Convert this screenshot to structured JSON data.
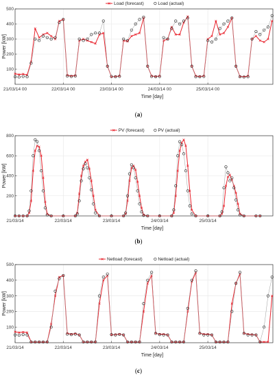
{
  "chart_data": [
    {
      "type": "line",
      "panel": "(a)",
      "caption_letter": "a",
      "ylabel": "Power [kW]",
      "xlabel": "Time [day]",
      "ylim": [
        0,
        500
      ],
      "yticks": [
        100,
        200,
        300,
        400,
        500
      ],
      "xlim": [
        0,
        5.35
      ],
      "xticks": [
        0,
        1,
        2,
        3,
        4
      ],
      "xticklabels": [
        "21/03/14 00",
        "22/03/14 00",
        "23/03/14 00",
        "24/03/14 00",
        "25/03/14 00"
      ],
      "grid": true,
      "legend": "top-center",
      "series": [
        {
          "name": "Load (forecast)",
          "color": "#e8202a",
          "marker": "x",
          "x": [
            0,
            0.083,
            0.167,
            0.25,
            0.333,
            0.417,
            0.5,
            0.583,
            0.667,
            0.75,
            0.833,
            0.917,
            1,
            1.083,
            1.167,
            1.25,
            1.333,
            1.417,
            1.5,
            1.583,
            1.667,
            1.75,
            1.833,
            1.917,
            2,
            2.083,
            2.167,
            2.25,
            2.333,
            2.417,
            2.5,
            2.583,
            2.667,
            2.75,
            2.833,
            2.917,
            3,
            3.083,
            3.167,
            3.25,
            3.333,
            3.417,
            3.5,
            3.583,
            3.667,
            3.75,
            3.833,
            3.917,
            4,
            4.083,
            4.167,
            4.25,
            4.333,
            4.417,
            4.5,
            4.583,
            4.667,
            4.75,
            4.833,
            4.917,
            5,
            5.083,
            5.167,
            5.25,
            5.333
          ],
          "y": [
            70,
            65,
            68,
            62,
            150,
            370,
            310,
            330,
            340,
            320,
            300,
            420,
            430,
            60,
            55,
            58,
            290,
            300,
            290,
            280,
            270,
            330,
            340,
            120,
            50,
            52,
            55,
            290,
            285,
            320,
            330,
            340,
            440,
            120,
            55,
            52,
            55,
            290,
            300,
            380,
            330,
            330,
            410,
            450,
            120,
            55,
            52,
            55,
            300,
            320,
            420,
            330,
            340,
            380,
            440,
            120,
            52,
            50,
            55,
            300,
            320,
            290,
            280,
            300,
            420
          ]
        },
        {
          "name": "Load (actual)",
          "color": "#222222",
          "marker": "o",
          "x": [
            0,
            0.083,
            0.167,
            0.25,
            0.333,
            0.417,
            0.5,
            0.583,
            0.667,
            0.75,
            0.833,
            0.917,
            1,
            1.083,
            1.167,
            1.25,
            1.333,
            1.417,
            1.5,
            1.583,
            1.667,
            1.75,
            1.833,
            1.917,
            2,
            2.083,
            2.167,
            2.25,
            2.333,
            2.417,
            2.5,
            2.583,
            2.667,
            2.75,
            2.833,
            2.917,
            3,
            3.083,
            3.167,
            3.25,
            3.333,
            3.417,
            3.5,
            3.583,
            3.667,
            3.75,
            3.833,
            3.917,
            4,
            4.083,
            4.167,
            4.25,
            4.333,
            4.417,
            4.5,
            4.583,
            4.667,
            4.75,
            4.833,
            4.917,
            5,
            5.083,
            5.167,
            5.25,
            5.333
          ],
          "y": [
            50,
            48,
            52,
            50,
            140,
            300,
            290,
            320,
            310,
            300,
            310,
            410,
            430,
            55,
            52,
            55,
            300,
            290,
            300,
            330,
            340,
            340,
            420,
            120,
            52,
            50,
            53,
            300,
            290,
            360,
            400,
            430,
            445,
            120,
            52,
            50,
            52,
            310,
            300,
            370,
            420,
            400,
            420,
            440,
            120,
            50,
            50,
            52,
            290,
            280,
            300,
            370,
            400,
            420,
            440,
            120,
            50,
            48,
            50,
            300,
            350,
            330,
            360,
            380,
            455
          ]
        }
      ]
    },
    {
      "type": "line",
      "panel": "(b)",
      "caption_letter": "b",
      "ylabel": "Power [kW]",
      "xlabel": "Time [day]",
      "ylim": [
        0,
        800
      ],
      "yticks": [
        200,
        400,
        600,
        800
      ],
      "xlim": [
        0,
        5.35
      ],
      "xticks": [
        0,
        1,
        2,
        3,
        4
      ],
      "xticklabels": [
        "21/03/14",
        "22/03/14",
        "23/03/14",
        "24/03/14",
        "25/03/14"
      ],
      "grid": true,
      "legend": "top-center",
      "series": [
        {
          "name": "PV (forecast)",
          "color": "#e8202a",
          "marker": "x",
          "x": [
            0,
            0.083,
            0.167,
            0.25,
            0.292,
            0.333,
            0.375,
            0.417,
            0.458,
            0.5,
            0.542,
            0.583,
            0.625,
            0.667,
            0.75,
            1,
            1.25,
            1.292,
            1.333,
            1.375,
            1.417,
            1.458,
            1.5,
            1.542,
            1.583,
            1.625,
            1.667,
            1.75,
            2,
            2.25,
            2.292,
            2.333,
            2.375,
            2.417,
            2.458,
            2.5,
            2.542,
            2.583,
            2.625,
            2.667,
            2.75,
            3,
            3.25,
            3.292,
            3.333,
            3.375,
            3.417,
            3.458,
            3.5,
            3.542,
            3.583,
            3.625,
            3.667,
            3.75,
            4,
            4.25,
            4.292,
            4.333,
            4.375,
            4.417,
            4.458,
            4.5,
            4.542,
            4.583,
            4.625,
            4.667,
            4.75,
            5,
            5.083
          ],
          "y": [
            0,
            0,
            0,
            0,
            30,
            150,
            450,
            650,
            700,
            690,
            600,
            380,
            140,
            20,
            0,
            0,
            0,
            30,
            220,
            400,
            500,
            540,
            560,
            470,
            350,
            200,
            60,
            0,
            0,
            0,
            20,
            150,
            350,
            480,
            500,
            460,
            340,
            200,
            80,
            10,
            0,
            0,
            0,
            30,
            200,
            450,
            650,
            730,
            760,
            700,
            500,
            250,
            60,
            0,
            0,
            0,
            20,
            100,
            300,
            390,
            410,
            360,
            300,
            230,
            120,
            20,
            0,
            0,
            0
          ]
        },
        {
          "name": "PV (actual)",
          "color": "#222222",
          "marker": "o",
          "x": [
            0,
            0.083,
            0.167,
            0.25,
            0.292,
            0.333,
            0.375,
            0.417,
            0.458,
            0.5,
            0.542,
            0.583,
            0.625,
            0.667,
            0.75,
            1,
            1.25,
            1.292,
            1.333,
            1.375,
            1.417,
            1.458,
            1.5,
            1.542,
            1.583,
            1.625,
            1.667,
            1.75,
            2,
            2.25,
            2.292,
            2.333,
            2.375,
            2.417,
            2.458,
            2.5,
            2.542,
            2.583,
            2.625,
            2.667,
            2.75,
            3,
            3.25,
            3.292,
            3.333,
            3.375,
            3.417,
            3.458,
            3.5,
            3.542,
            3.583,
            3.625,
            3.667,
            3.75,
            4,
            4.25,
            4.292,
            4.333,
            4.375,
            4.417,
            4.458,
            4.5,
            4.542,
            4.583,
            4.625,
            4.667,
            4.75,
            5,
            5.083
          ],
          "y": [
            0,
            0,
            0,
            0,
            50,
            250,
            600,
            760,
            740,
            650,
            450,
            250,
            80,
            10,
            0,
            0,
            0,
            20,
            150,
            350,
            470,
            520,
            480,
            380,
            260,
            120,
            30,
            0,
            0,
            0,
            30,
            200,
            420,
            510,
            480,
            380,
            250,
            120,
            40,
            5,
            0,
            0,
            0,
            60,
            300,
            600,
            740,
            710,
            620,
            450,
            250,
            100,
            20,
            0,
            0,
            0,
            40,
            280,
            490,
            430,
            350,
            380,
            280,
            160,
            60,
            10,
            0,
            0,
            0
          ]
        }
      ]
    },
    {
      "type": "line",
      "panel": "(c)",
      "caption_letter": "c",
      "ylabel": "Power [kW]",
      "xlabel": "Time [day]",
      "ylim": [
        0,
        500
      ],
      "yticks": [
        100,
        200,
        300,
        400,
        500
      ],
      "xlim": [
        0,
        5.35
      ],
      "xticks": [
        0,
        1,
        2,
        3,
        4
      ],
      "xticklabels": [
        "21/03/14",
        "22/03/14",
        "23/03/14",
        "24/03/14",
        "25/03/14"
      ],
      "grid": true,
      "legend": "top-center",
      "series": [
        {
          "name": "Netload (forecast)",
          "color": "#e8202a",
          "marker": "x",
          "x": [
            0,
            0.083,
            0.167,
            0.25,
            0.333,
            0.417,
            0.5,
            0.583,
            0.667,
            0.75,
            0.833,
            0.917,
            1,
            1.083,
            1.167,
            1.25,
            1.333,
            1.417,
            1.5,
            1.583,
            1.667,
            1.75,
            1.833,
            1.917,
            2,
            2.083,
            2.167,
            2.25,
            2.333,
            2.417,
            2.5,
            2.583,
            2.667,
            2.75,
            2.833,
            2.917,
            3,
            3.083,
            3.167,
            3.25,
            3.333,
            3.417,
            3.5,
            3.583,
            3.667,
            3.75,
            3.833,
            3.917,
            4,
            4.083,
            4.167,
            4.25,
            4.333,
            4.417,
            4.5,
            4.583,
            4.667,
            4.75,
            4.833,
            4.917,
            5,
            5.083,
            5.167,
            5.25,
            5.333
          ],
          "y": [
            70,
            65,
            68,
            65,
            5,
            5,
            5,
            5,
            5,
            120,
            300,
            420,
            430,
            60,
            55,
            58,
            50,
            5,
            5,
            5,
            5,
            250,
            400,
            430,
            50,
            52,
            55,
            50,
            5,
            5,
            5,
            5,
            200,
            380,
            430,
            60,
            55,
            55,
            50,
            5,
            5,
            5,
            5,
            200,
            390,
            450,
            60,
            55,
            55,
            50,
            5,
            5,
            5,
            5,
            250,
            380,
            440,
            60,
            55,
            52,
            50,
            5,
            5,
            5,
            300
          ]
        },
        {
          "name": "Netload (actual)",
          "color": "#222222",
          "marker": "o",
          "x": [
            0,
            0.083,
            0.167,
            0.25,
            0.333,
            0.417,
            0.5,
            0.583,
            0.667,
            0.75,
            0.833,
            0.917,
            1,
            1.083,
            1.167,
            1.25,
            1.333,
            1.417,
            1.5,
            1.583,
            1.667,
            1.75,
            1.833,
            1.917,
            2,
            2.083,
            2.167,
            2.25,
            2.333,
            2.417,
            2.5,
            2.583,
            2.667,
            2.75,
            2.833,
            2.917,
            3,
            3.083,
            3.167,
            3.25,
            3.333,
            3.417,
            3.5,
            3.583,
            3.667,
            3.75,
            3.833,
            3.917,
            4,
            4.083,
            4.167,
            4.25,
            4.333,
            4.417,
            4.5,
            4.583,
            4.667,
            4.75,
            4.833,
            4.917,
            5,
            5.083,
            5.167,
            5.25,
            5.333
          ],
          "y": [
            50,
            48,
            52,
            50,
            5,
            5,
            5,
            5,
            5,
            100,
            330,
            410,
            430,
            55,
            52,
            55,
            50,
            5,
            5,
            5,
            5,
            300,
            420,
            440,
            52,
            50,
            53,
            50,
            5,
            5,
            5,
            5,
            250,
            400,
            450,
            60,
            52,
            50,
            50,
            5,
            5,
            5,
            5,
            220,
            400,
            460,
            60,
            50,
            50,
            50,
            5,
            5,
            5,
            5,
            200,
            380,
            450,
            60,
            50,
            50,
            50,
            5,
            100,
            300,
            420
          ]
        }
      ]
    }
  ]
}
